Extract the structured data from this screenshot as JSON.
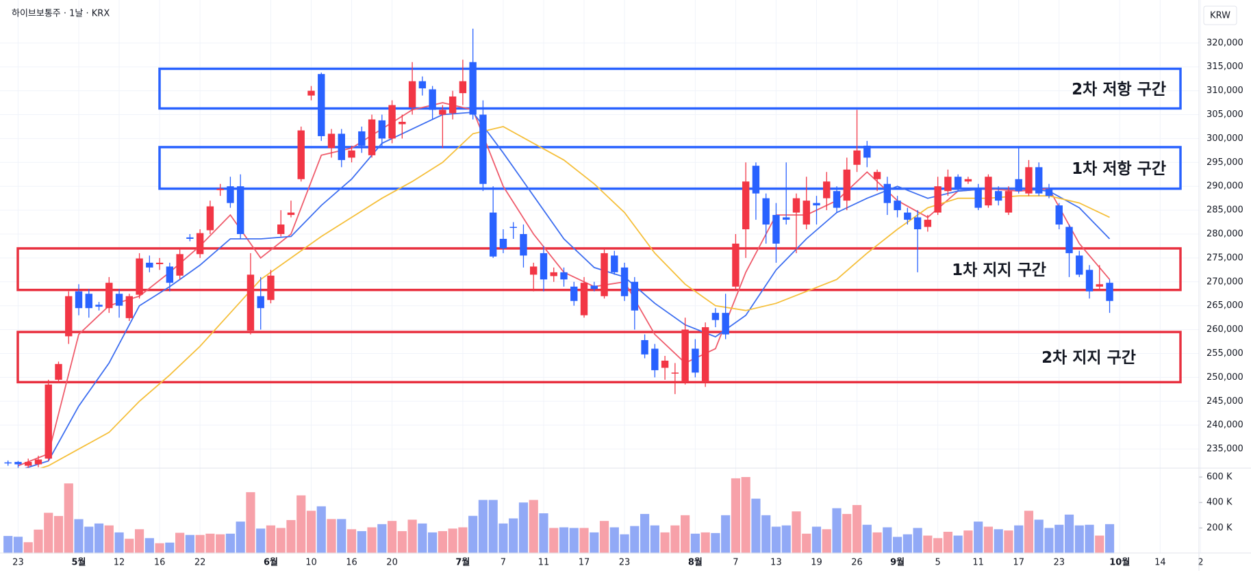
{
  "chart_data": {
    "type": "candlestick",
    "title": "하이브보통주 · 1날 · KRX",
    "currency": "KRW",
    "categories": [
      null,
      "23",
      null,
      null,
      null,
      null,
      null,
      "5월",
      null,
      null,
      null,
      "12",
      null,
      null,
      null,
      "16",
      null,
      null,
      null,
      "22",
      null,
      null,
      null,
      null,
      null,
      null,
      "6월",
      null,
      null,
      null,
      "10",
      null,
      null,
      null,
      "16",
      null,
      null,
      null,
      "20",
      null,
      null,
      null,
      null,
      null,
      null,
      "7월",
      null,
      null,
      null,
      "7",
      null,
      null,
      null,
      "11",
      null,
      null,
      null,
      "17",
      null,
      null,
      null,
      "23",
      null,
      null,
      null,
      null,
      null,
      null,
      "8월",
      null,
      null,
      null,
      "7",
      null,
      null,
      null,
      "13",
      null,
      null,
      null,
      "19",
      null,
      null,
      null,
      "26",
      null,
      null,
      null,
      "9월",
      null,
      null,
      null,
      "5",
      null,
      null,
      null,
      "11",
      null,
      null,
      null,
      "17",
      null,
      null,
      null,
      "23",
      null,
      null,
      null,
      null,
      null,
      "10월",
      null,
      null,
      null,
      "14",
      null,
      null,
      null,
      "2"
    ],
    "open": [
      232200,
      232300,
      231500,
      231800,
      233000,
      249500,
      258600,
      268000,
      267500,
      265200,
      264500,
      267500,
      262400,
      267300,
      274000,
      273700,
      273200,
      271300,
      279300,
      275800,
      280800,
      289200,
      290000,
      290000,
      259800,
      267000,
      266200,
      280000,
      284000,
      291500,
      309000,
      313500,
      298000,
      301000,
      296000,
      301500,
      296500,
      303800,
      300000,
      303000,
      306500,
      312000,
      310300,
      305000,
      305300,
      309500,
      316000,
      305000,
      284500,
      279000,
      281500,
      280000,
      271500,
      276000,
      271200,
      272000,
      269000,
      263000,
      269200,
      267000,
      275500,
      273000,
      270000,
      257800,
      256000,
      252000,
      250800,
      249000,
      256000,
      249000,
      263500,
      263500,
      269000,
      281000,
      294300,
      287500,
      284000,
      283500,
      284500,
      282000,
      286500,
      287500,
      289000,
      287000,
      294500,
      298500,
      291500,
      290500,
      287000,
      284500,
      283500,
      281500,
      284500,
      289000,
      292000,
      291000,
      289500,
      286000,
      289000,
      284500,
      291500,
      288500,
      294000,
      289500,
      286000,
      281500,
      275500,
      272500,
      269000,
      269800,
      null,
      null,
      null,
      null,
      null,
      null,
      null,
      null,
      null
    ],
    "high": [
      232600,
      232500,
      233000,
      233600,
      249500,
      253300,
      268000,
      269500,
      268500,
      265800,
      271000,
      268500,
      267500,
      276000,
      275500,
      275000,
      274000,
      277000,
      280000,
      281000,
      287000,
      290500,
      292000,
      292500,
      276000,
      271000,
      272500,
      285000,
      287000,
      302500,
      311000,
      313800,
      302000,
      302000,
      298500,
      302500,
      305000,
      305000,
      308000,
      305000,
      316000,
      313000,
      311000,
      307000,
      310000,
      316500,
      323000,
      308000,
      290000,
      281000,
      282500,
      282000,
      274000,
      277500,
      273000,
      273000,
      270000,
      271000,
      270000,
      277000,
      276500,
      274000,
      271000,
      259000,
      257000,
      254500,
      253000,
      262500,
      258000,
      261500,
      264500,
      267500,
      280000,
      295000,
      295000,
      288500,
      286500,
      295000,
      288500,
      292000,
      288000,
      293000,
      290000,
      296000,
      306000,
      299500,
      293500,
      292000,
      288000,
      285500,
      285000,
      284000,
      292000,
      293500,
      292500,
      292000,
      290500,
      292500,
      290000,
      290000,
      298000,
      295500,
      295000,
      290500,
      286500,
      282000,
      276500,
      273500,
      273500,
      270500,
      null,
      null,
      null,
      null,
      null,
      null,
      null,
      null,
      null
    ],
    "low": [
      231500,
      231000,
      231000,
      231200,
      232500,
      248800,
      257000,
      263000,
      262500,
      264000,
      263500,
      262500,
      261800,
      266500,
      272000,
      272500,
      268000,
      270500,
      278500,
      275000,
      280000,
      288000,
      285500,
      279000,
      259000,
      260000,
      265500,
      279500,
      283500,
      291000,
      308000,
      299500,
      296000,
      294000,
      295000,
      297000,
      296000,
      298000,
      299000,
      300000,
      305000,
      309000,
      304000,
      298000,
      304000,
      307000,
      304000,
      289000,
      275000,
      276000,
      279000,
      273000,
      268000,
      268000,
      270000,
      269000,
      265000,
      262500,
      268000,
      266500,
      271500,
      266000,
      260000,
      254000,
      250000,
      249500,
      246500,
      248500,
      250000,
      248000,
      260500,
      258000,
      268500,
      275000,
      283000,
      278000,
      274000,
      282000,
      276000,
      281000,
      282000,
      285000,
      284500,
      285000,
      293000,
      294000,
      289000,
      284000,
      283500,
      282000,
      272000,
      280500,
      284000,
      288000,
      289000,
      290500,
      285000,
      285500,
      286000,
      284000,
      288500,
      288000,
      288000,
      287500,
      281000,
      271000,
      271000,
      266500,
      268500,
      263500,
      null,
      null,
      null,
      null,
      null,
      null,
      null,
      null,
      null
    ],
    "close": [
      232000,
      231800,
      232300,
      232800,
      248500,
      252800,
      267000,
      264500,
      264500,
      264800,
      269800,
      265000,
      267000,
      274900,
      273000,
      274000,
      269800,
      275800,
      279000,
      280200,
      285800,
      289500,
      286500,
      280000,
      271500,
      264500,
      271300,
      282000,
      284500,
      301700,
      310000,
      300500,
      301000,
      295500,
      297500,
      298500,
      304000,
      300000,
      307000,
      303500,
      312000,
      310500,
      306000,
      306000,
      308800,
      312000,
      305000,
      290500,
      275300,
      277000,
      281300,
      275500,
      273200,
      270500,
      272000,
      270500,
      266000,
      269800,
      268500,
      276000,
      272000,
      267000,
      264000,
      254800,
      251500,
      253500,
      251000,
      260000,
      251000,
      260500,
      262000,
      259000,
      278000,
      291000,
      288500,
      282000,
      278000,
      283000,
      287500,
      287000,
      286000,
      291000,
      285500,
      293500,
      297500,
      296000,
      293000,
      286500,
      285000,
      283000,
      281000,
      283000,
      290000,
      292000,
      289500,
      291500,
      285500,
      292000,
      287000,
      289000,
      289000,
      294000,
      288500,
      288000,
      282000,
      276000,
      271500,
      268000,
      269500,
      266000,
      null,
      null,
      null,
      null,
      null,
      null,
      null,
      null,
      null
    ],
    "volume": [
      137,
      131,
      88,
      187,
      319,
      294,
      550,
      269,
      210,
      235,
      220,
      165,
      115,
      190,
      120,
      80,
      85,
      162,
      145,
      145,
      155,
      150,
      155,
      250,
      481,
      195,
      220,
      200,
      262,
      456,
      335,
      370,
      270,
      270,
      190,
      175,
      205,
      230,
      255,
      175,
      265,
      235,
      165,
      175,
      195,
      205,
      295,
      420,
      420,
      235,
      275,
      400,
      420,
      315,
      200,
      205,
      200,
      200,
      165,
      255,
      205,
      150,
      215,
      310,
      220,
      165,
      220,
      300,
      155,
      165,
      160,
      300,
      590,
      600,
      430,
      300,
      210,
      220,
      330,
      155,
      210,
      190,
      355,
      310,
      380,
      225,
      165,
      205,
      130,
      150,
      200,
      140,
      120,
      170,
      140,
      180,
      250,
      210,
      190,
      180,
      220,
      335,
      265,
      200,
      225,
      305,
      220,
      225,
      140,
      230,
      null,
      null,
      null,
      null,
      null,
      null,
      null,
      null,
      null
    ],
    "up_color": "#f23645",
    "down_color": "#2962ff",
    "volume_up_color": "#f7a1a9",
    "volume_down_color": "#91a9f6",
    "ylim": [
      231000,
      329000
    ],
    "yticks": [
      {
        "value": 235000,
        "label": "235,000"
      },
      {
        "value": 240000,
        "label": "240,000"
      },
      {
        "value": 245000,
        "label": "245,000"
      },
      {
        "value": 250000,
        "label": "250,000"
      },
      {
        "value": 255000,
        "label": "255,000"
      },
      {
        "value": 260000,
        "label": "260,000"
      },
      {
        "value": 265000,
        "label": "265,000"
      },
      {
        "value": 270000,
        "label": "270,000"
      },
      {
        "value": 275000,
        "label": "275,000"
      },
      {
        "value": 280000,
        "label": "280,000"
      },
      {
        "value": 285000,
        "label": "285,000"
      },
      {
        "value": 290000,
        "label": "290,000"
      },
      {
        "value": 295000,
        "label": "295,000"
      },
      {
        "value": 300000,
        "label": "300,000"
      },
      {
        "value": 305000,
        "label": "305,000"
      },
      {
        "value": 310000,
        "label": "310,000"
      },
      {
        "value": 315000,
        "label": "315,000"
      },
      {
        "value": 320000,
        "label": "320,000"
      }
    ],
    "volume_ylim": [
      0,
      670
    ],
    "volume_ticks": [
      {
        "value": 200,
        "label": "200 K"
      },
      {
        "value": 400,
        "label": "400 K"
      },
      {
        "value": 600,
        "label": "600 K"
      }
    ],
    "grid": true,
    "moving_averages": {
      "x": [
        1,
        4,
        7,
        10,
        13,
        16,
        19,
        22,
        25,
        28,
        31,
        34,
        37,
        40,
        43,
        46,
        49,
        52,
        55,
        58,
        61,
        64,
        67,
        70,
        73,
        76,
        79,
        82,
        85,
        88,
        91,
        94,
        97,
        100,
        103,
        106,
        109
      ],
      "series": [
        {
          "color": "#ef5b6b",
          "values": [
            231500,
            234000,
            259000,
            265000,
            267000,
            272000,
            277500,
            284000,
            275000,
            280000,
            296500,
            298000,
            302000,
            306000,
            307500,
            306000,
            290000,
            280000,
            272000,
            269000,
            270000,
            259000,
            253000,
            256000,
            272000,
            284000,
            284000,
            287000,
            293000,
            287000,
            283500,
            289000,
            289500,
            289000,
            289500,
            278000,
            270500
          ]
        },
        {
          "color": "#3d6ef0",
          "values": [
            230500,
            232500,
            244000,
            253000,
            265000,
            269000,
            273500,
            279000,
            279000,
            279500,
            286000,
            291500,
            299000,
            302000,
            305000,
            305500,
            297000,
            288000,
            279000,
            273000,
            271000,
            265500,
            261000,
            258500,
            263000,
            272500,
            279000,
            284500,
            287500,
            290000,
            287500,
            289000,
            289500,
            289500,
            289000,
            285500,
            279000
          ]
        },
        {
          "color": "#f5bf3a",
          "values": [
            229500,
            231500,
            235000,
            238500,
            245000,
            250500,
            256500,
            263500,
            270500,
            275000,
            279500,
            283500,
            287500,
            291000,
            295000,
            301000,
            302500,
            299000,
            295500,
            290500,
            284500,
            276000,
            269500,
            265000,
            264000,
            265500,
            268000,
            270500,
            276000,
            281000,
            285500,
            287500,
            287500,
            288000,
            288000,
            286500,
            283500
          ]
        }
      ]
    },
    "zones": [
      {
        "label": "2차 저항 구간",
        "color": "#2962ff",
        "from": 306300,
        "to": 314600
      },
      {
        "label": "1차 저항 구간",
        "color": "#2962ff",
        "from": 289500,
        "to": 298200
      },
      {
        "label": "1차 지지 구간",
        "color": "#e8303f",
        "from": 268300,
        "to": 277000
      },
      {
        "label": "2차 지지 구간",
        "color": "#e8303f",
        "from": 249000,
        "to": 259500
      }
    ]
  }
}
